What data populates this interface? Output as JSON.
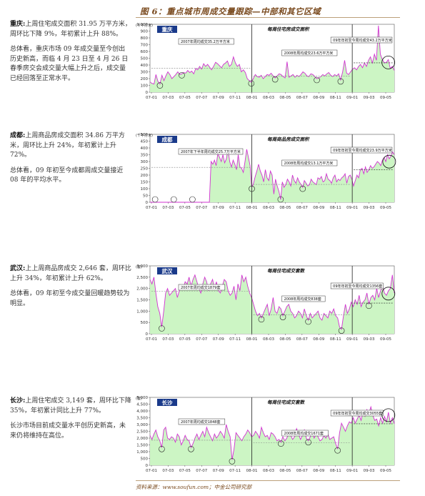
{
  "figure_title": "图 6：重点城市周成交量跟踪—中部和其它区域",
  "source": "资料来源：www.soufun.com；中金公司研究部",
  "paragraphs": [
    {
      "city": "重庆:",
      "p1": "上周住宅成交面积 31.95 万平方米，周环比下降 9%，年初累计上升 88%。",
      "p2": "总体看，重庆市场 09 年成交量至今创出历史新高，而临 4 月 23 日至 4 月 26 日春季房交会成交量大幅上升之后，成交量已经回落至正常水平。"
    },
    {
      "city": "成都:",
      "p1": "上周商品房成交面积 34.86 万平方米，周环比上升 24%，年初累计上升 72%。",
      "p2": "总体看，09 年初至今成都周成交量接近 08 年的平均水平。"
    },
    {
      "city": "武汉:",
      "p1": "上上周商品房成交 2,646 套，周环比上升 34%，年初累计上升 62%。",
      "p2": "总体看，09 年初至今成交量回暖趋势较为明显。"
    },
    {
      "city": "长沙:",
      "p1": "上周住宅成交 3,149 套，周环比下降 35%，年初累计同比上升 77%。",
      "p2": "长沙市场目前成交量水平创历史新高，未来仍将维持在高位。"
    }
  ],
  "chart_data": [
    {
      "type": "area",
      "city_tag": "重庆",
      "title": "每周住宅房成交面积",
      "unit": "(千平方米)",
      "ylim": [
        0,
        1000
      ],
      "yticks": [
        "0",
        "100",
        "200",
        "300",
        "400",
        "500",
        "600",
        "700",
        "800",
        "900",
        "1,000"
      ],
      "xticks": [
        "07-01",
        "07-03",
        "07-05",
        "07-07",
        "07-09",
        "07-11",
        "08-01",
        "08-03",
        "08-05",
        "08-07",
        "08-09",
        "08-11",
        "09-01",
        "09-03",
        "09-05"
      ],
      "annotations": [
        "2007年周均成交35.2万平方米",
        "2008年周均成交23.6万平方米",
        "09年年初至今周均成交43.2万平方米"
      ],
      "avg_lines": [
        352,
        236,
        432
      ],
      "values": [
        150,
        130,
        120,
        260,
        160,
        120,
        250,
        170,
        240,
        300,
        260,
        200,
        230,
        260,
        300,
        260,
        270,
        290,
        280,
        320,
        290,
        310,
        270,
        350,
        330,
        380,
        340,
        420,
        380,
        410,
        370,
        330,
        380,
        440,
        420,
        390,
        360,
        410,
        430,
        460,
        380,
        410,
        520,
        430,
        380,
        410,
        300,
        330,
        290,
        200,
        170,
        150,
        200,
        260,
        230,
        220,
        250,
        200,
        230,
        260,
        250,
        280,
        240,
        210,
        240,
        270,
        260,
        230,
        210,
        450,
        220,
        240,
        260,
        220,
        250,
        230,
        260,
        300,
        280,
        240,
        230,
        270,
        260,
        230,
        200,
        210,
        230,
        260,
        240,
        270,
        290,
        250,
        230,
        260,
        240,
        270,
        180,
        300,
        470,
        280,
        260,
        300,
        340,
        360,
        330,
        380,
        410,
        360,
        430,
        380,
        470,
        520,
        430,
        560,
        470,
        980,
        560,
        480,
        430,
        440,
        480,
        350,
        380,
        320
      ]
    },
    {
      "type": "area",
      "city_tag": "成都",
      "title": "每周商品房成交面积",
      "unit": "(千平方米)",
      "ylim": [
        0,
        500
      ],
      "yticks": [
        "0",
        "50",
        "100",
        "150",
        "200",
        "250",
        "300",
        "350",
        "400",
        "450",
        "500"
      ],
      "xticks": [
        "07-01",
        "07-03",
        "07-05",
        "07-07",
        "07-09",
        "07-11",
        "08-01",
        "08-03",
        "08-05",
        "08-07",
        "08-09",
        "08-11",
        "09-01",
        "09-03",
        "09-05"
      ],
      "annotations": [
        "2007年下半年周均成交25.7万平方米",
        "2008年周均成交13.1万平方米",
        "09年年初至今周均成交23.9万平方米"
      ],
      "avg_lines": [
        257,
        131,
        239
      ],
      "values": [
        0,
        0,
        0,
        0,
        0,
        0,
        0,
        0,
        0,
        0,
        0,
        0,
        0,
        0,
        0,
        0,
        0,
        0,
        0,
        0,
        0,
        0,
        0,
        0,
        0,
        0,
        0,
        0,
        0,
        0,
        0,
        0,
        0,
        0,
        0,
        0,
        300,
        280,
        310,
        270,
        360,
        330,
        300,
        350,
        290,
        320,
        390,
        300,
        260,
        310,
        280,
        240,
        350,
        260,
        250,
        220,
        300,
        390,
        330,
        270,
        110,
        140,
        190,
        230,
        280,
        230,
        200,
        150,
        240,
        180,
        160,
        230,
        200,
        60,
        170,
        120,
        80,
        20,
        150,
        110,
        130,
        170,
        150,
        120,
        200,
        160,
        140,
        180,
        150,
        130,
        110,
        160,
        140,
        120,
        130,
        170,
        150,
        140,
        130,
        180,
        170,
        190,
        150,
        160,
        210,
        170,
        160,
        140,
        180,
        200,
        150,
        170,
        160,
        180,
        190,
        210,
        140,
        190,
        200,
        170,
        120,
        160,
        200,
        180,
        240,
        250,
        210,
        260,
        220,
        240,
        270,
        250,
        260,
        280,
        300,
        290,
        270,
        310,
        330,
        300,
        350,
        320,
        340,
        370,
        350
      ]
    },
    {
      "type": "area",
      "city_tag": "武汉",
      "title": "每周住宅成交套数",
      "unit": "(套)",
      "ylim": [
        0,
        3000
      ],
      "yticks": [
        "0",
        "500",
        "1,000",
        "1,500",
        "2,000",
        "2,500",
        "3,000"
      ],
      "xticks": [
        "07-01",
        "07-03",
        "07-05",
        "07-07",
        "07-09",
        "07-11",
        "08-01",
        "08-03",
        "08-05",
        "08-07",
        "08-09",
        "08-11",
        "09-01",
        "09-03",
        "09-05"
      ],
      "annotations": [
        "2007年周均成交1879套",
        "2008年周均成交838套",
        "09年年初至今周均成交1356套"
      ],
      "avg_lines": [
        1879,
        838,
        1356
      ],
      "values": [
        2400,
        2200,
        2500,
        1800,
        1200,
        900,
        300,
        1000,
        1800,
        2000,
        1700,
        1800,
        1900,
        2000,
        1600,
        1900,
        2100,
        2000,
        2300,
        2200,
        2500,
        2100,
        2400,
        2600,
        2300,
        2000,
        1800,
        2200,
        2500,
        2300,
        1900,
        2200,
        2400,
        2000,
        2300,
        1900,
        1800,
        2100,
        2400,
        2300,
        1900,
        1700,
        1800,
        2100,
        1500,
        2200,
        1900,
        2600,
        2300,
        2500,
        2100,
        1800,
        1600,
        1300,
        1000,
        800,
        900,
        700,
        900,
        1100,
        1300,
        800,
        1100,
        1600,
        1000,
        900,
        1200,
        1100,
        800,
        1000,
        1200,
        1300,
        1000,
        900,
        700,
        800,
        1000,
        900,
        700,
        1100,
        800,
        600,
        900,
        700,
        800,
        900,
        1000,
        700,
        600,
        900,
        800,
        700,
        1000,
        900,
        1100,
        800,
        700,
        300,
        200,
        800,
        1300,
        900,
        1100,
        1400,
        1200,
        1500,
        1300,
        1700,
        1200,
        1400,
        1500,
        1800,
        1300,
        1600,
        1700,
        1500,
        2000,
        1600,
        1900,
        2100,
        1800,
        1700,
        1900,
        2000,
        2600,
        1800
      ]
    },
    {
      "type": "area",
      "city_tag": "长沙",
      "title": "每周住宅成交套数",
      "unit": "(套)",
      "ylim": [
        0,
        5000
      ],
      "yticks": [
        "0",
        "500",
        "1,000",
        "1,500",
        "2,000",
        "2,500",
        "3,000",
        "3,500",
        "4,000",
        "4,500",
        "5,000"
      ],
      "xticks": [
        "07-01",
        "07-03",
        "07-05",
        "07-07",
        "07-09",
        "07-11",
        "08-01",
        "08-03",
        "08-05",
        "08-07",
        "08-09",
        "08-11",
        "09-01",
        "09-03",
        "09-05"
      ],
      "annotations": [
        "2007年周均成交1848套",
        "2008年周均成交1671套",
        "09年年初至今周均成交3055套"
      ],
      "avg_lines": [
        1848,
        1671,
        3055
      ],
      "values": [
        2200,
        1900,
        2300,
        2600,
        2100,
        1800,
        1300,
        2600,
        2800,
        2000,
        1900,
        2100,
        2000,
        1700,
        2300,
        2100,
        1500,
        1800,
        2200,
        1900,
        1800,
        1300,
        1600,
        2000,
        2300,
        1900,
        2200,
        2500,
        2100,
        2800,
        2400,
        2100,
        1800,
        2300,
        2000,
        2200,
        2500,
        2300,
        2000,
        3000,
        2500,
        2100,
        400,
        1200,
        2400,
        2200,
        2000,
        1800,
        2100,
        2300,
        2600,
        2400,
        2100,
        2200,
        2500,
        2300,
        2000,
        2800,
        2400,
        2100,
        2200,
        1900,
        2400,
        2300,
        2100,
        1800,
        1900,
        1700,
        2100,
        1800,
        2000,
        2400,
        2200,
        1900,
        2100,
        2700,
        2300,
        1900,
        2200,
        2600,
        2000,
        1800,
        2100,
        2400,
        2000,
        2300,
        2100,
        1800,
        1900,
        2200,
        2000,
        2300,
        1900,
        2000,
        2100,
        1600,
        1200,
        2400,
        3100,
        2800,
        2500,
        2900,
        3200,
        3100,
        3500,
        3100,
        3400,
        3700,
        3300,
        3900,
        3600,
        4100,
        3800,
        4300,
        3700,
        3300,
        3400,
        2900,
        3500,
        3100,
        3600,
        3200,
        3900,
        3100,
        3500,
        3055
      ]
    }
  ]
}
